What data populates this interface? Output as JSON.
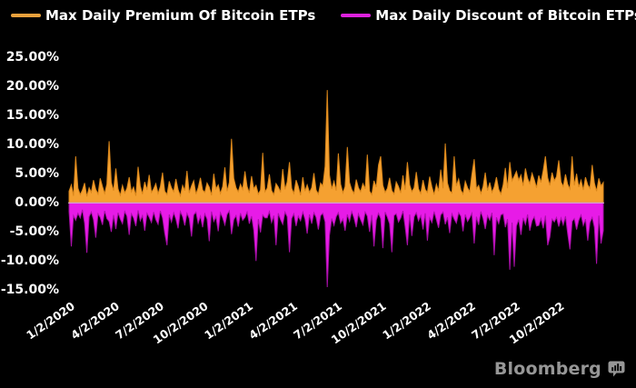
{
  "legend": [
    {
      "label": "Max Daily Premium Of Bitcoin ETPs",
      "color": "#E8A13C"
    },
    {
      "label": "Max Daily Discount of Bitcoin ETPs",
      "color": "#DE21DE"
    }
  ],
  "branding": {
    "logo_text": "Bloomberg",
    "logo_color": "#969696",
    "chart_icon": "bar-chart-bubble-icon"
  },
  "chart_data": {
    "type": "area",
    "title": "",
    "xlabel": "",
    "ylabel": "",
    "background": "#000000",
    "zero_line_color": "#E8E8E8",
    "grid": false,
    "legend_position": "top",
    "ylim": [
      -15.6,
      26.6
    ],
    "y_ticks": [
      {
        "label": "25.00%",
        "value": 25
      },
      {
        "label": "20.00%",
        "value": 20
      },
      {
        "label": "15.00%",
        "value": 15
      },
      {
        "label": "10.00%",
        "value": 10
      },
      {
        "label": "5.00%",
        "value": 5
      },
      {
        "label": "0.00%",
        "value": 0
      },
      {
        "label": "-5.00%",
        "value": -5
      },
      {
        "label": "-10.00%",
        "value": -10
      },
      {
        "label": "-15.00%",
        "value": -15
      }
    ],
    "x_ticks": [
      {
        "label": "1/2/2020",
        "index": 0
      },
      {
        "label": "4/2/2020",
        "index": 20
      },
      {
        "label": "7/2/2020",
        "index": 40
      },
      {
        "label": "10/2/2020",
        "index": 60
      },
      {
        "label": "1/2/2021",
        "index": 80
      },
      {
        "label": "4/2/2021",
        "index": 100
      },
      {
        "label": "7/2/2021",
        "index": 120
      },
      {
        "label": "10/2/2021",
        "index": 140
      },
      {
        "label": "1/2/2022",
        "index": 160
      },
      {
        "label": "4/2/2022",
        "index": 180
      },
      {
        "label": "7/2/2022",
        "index": 200
      },
      {
        "label": "10/2/2022",
        "index": 220
      }
    ],
    "series": [
      {
        "id": "premium",
        "name": "Max Daily Premium Of Bitcoin ETPs",
        "color": "#F5A131",
        "edge": "#D9861A",
        "values": [
          2.0,
          3.1,
          1.2,
          8.0,
          2.5,
          1.4,
          2.2,
          3.4,
          1.1,
          2.6,
          1.8,
          3.9,
          2.3,
          1.5,
          4.2,
          2.8,
          1.6,
          3.2,
          10.6,
          3.5,
          2.1,
          5.9,
          2.4,
          1.3,
          3.0,
          1.7,
          2.5,
          4.4,
          1.9,
          2.7,
          1.2,
          6.2,
          2.9,
          1.5,
          3.6,
          2.2,
          4.8,
          1.8,
          2.4,
          3.3,
          1.6,
          2.8,
          5.2,
          2.0,
          1.4,
          3.7,
          2.6,
          1.9,
          4.1,
          2.3,
          1.2,
          3.0,
          2.1,
          5.5,
          1.7,
          2.9,
          3.8,
          1.5,
          2.6,
          4.3,
          2.2,
          1.8,
          3.4,
          2.7,
          1.3,
          5.0,
          2.4,
          3.1,
          1.6,
          2.8,
          6.1,
          2.0,
          3.5,
          11.0,
          4.2,
          2.6,
          1.9,
          3.2,
          2.3,
          5.4,
          2.8,
          1.7,
          4.6,
          2.4,
          3.0,
          1.5,
          2.2,
          8.6,
          1.9,
          2.5,
          4.9,
          2.1,
          1.4,
          3.3,
          2.7,
          1.8,
          5.8,
          2.3,
          3.6,
          7.0,
          2.5,
          1.6,
          3.9,
          2.8,
          1.3,
          4.4,
          2.0,
          3.1,
          1.8,
          2.6,
          5.1,
          2.2,
          1.5,
          3.4,
          2.9,
          6.3,
          19.4,
          4.8,
          2.4,
          3.7,
          2.1,
          8.5,
          3.2,
          1.7,
          2.8,
          9.6,
          3.5,
          2.3,
          1.6,
          4.0,
          2.6,
          1.9,
          3.3,
          2.4,
          8.3,
          2.0,
          1.4,
          3.8,
          2.7,
          6.5,
          8.0,
          3.0,
          1.8,
          2.5,
          4.3,
          2.1,
          1.5,
          3.6,
          2.8,
          1.7,
          4.7,
          2.2,
          7.0,
          3.1,
          1.9,
          2.6,
          5.3,
          2.4,
          1.6,
          3.9,
          2.3,
          1.8,
          4.5,
          2.7,
          1.4,
          3.2,
          2.0,
          5.7,
          2.5,
          10.2,
          3.4,
          2.1,
          1.7,
          8.0,
          2.9,
          4.1,
          2.2,
          1.5,
          3.7,
          2.6,
          1.9,
          4.9,
          7.5,
          2.4,
          3.0,
          1.6,
          2.8,
          5.2,
          2.1,
          3.5,
          1.8,
          2.7,
          4.4,
          2.3,
          1.5,
          3.1,
          6.0,
          2.5,
          7.0,
          3.8,
          4.6,
          5.4,
          3.9,
          4.8,
          2.9,
          5.9,
          4.2,
          3.3,
          5.1,
          4.0,
          2.6,
          4.7,
          3.5,
          5.6,
          8.0,
          4.3,
          3.0,
          5.2,
          3.8,
          4.5,
          7.3,
          3.6,
          2.8,
          4.9,
          3.2,
          2.4,
          8.0,
          3.0,
          5.0,
          2.7,
          3.9,
          2.2,
          4.4,
          3.1,
          2.5,
          6.5,
          3.4,
          2.0,
          4.2,
          2.9,
          3.5
        ]
      },
      {
        "id": "discount",
        "name": "Max Daily Discount of Bitcoin ETPs",
        "color": "#E71BE7",
        "edge": "#A80FA8",
        "values": [
          -1.5,
          -7.5,
          -2.2,
          -3.0,
          -1.8,
          -2.6,
          -1.2,
          -3.5,
          -8.6,
          -2.4,
          -1.6,
          -2.9,
          -6.0,
          -1.9,
          -2.5,
          -3.8,
          -1.4,
          -2.7,
          -3.2,
          -5.0,
          -2.1,
          -4.5,
          -1.7,
          -2.8,
          -3.6,
          -1.5,
          -2.3,
          -5.5,
          -1.9,
          -2.6,
          -4.0,
          -1.3,
          -3.1,
          -2.2,
          -4.8,
          -1.8,
          -2.5,
          -3.4,
          -1.6,
          -2.9,
          -3.7,
          -1.4,
          -2.6,
          -5.2,
          -7.3,
          -2.0,
          -3.3,
          -1.7,
          -2.8,
          -4.4,
          -1.5,
          -2.4,
          -3.9,
          -1.8,
          -2.7,
          -5.8,
          -2.1,
          -1.6,
          -3.5,
          -2.3,
          -4.2,
          -1.9,
          -2.8,
          -6.6,
          -1.5,
          -3.2,
          -2.4,
          -4.9,
          -1.7,
          -2.6,
          -3.8,
          -2.0,
          -1.4,
          -5.4,
          -2.9,
          -2.2,
          -4.1,
          -1.8,
          -3.0,
          -2.5,
          -1.6,
          -3.6,
          -2.3,
          -4.7,
          -10.0,
          -2.8,
          -5.1,
          -2.1,
          -2.6,
          -2.6,
          -1.5,
          -3.4,
          -2.2,
          -7.3,
          -1.8,
          -2.9,
          -3.7,
          -1.6,
          -2.4,
          -8.5,
          -2.7,
          -1.9,
          -4.0,
          -2.3,
          -3.1,
          -1.6,
          -2.8,
          -5.3,
          -2.0,
          -3.6,
          -1.7,
          -2.5,
          -4.6,
          -2.2,
          -1.8,
          -3.3,
          -14.5,
          -5.6,
          -2.7,
          -3.9,
          -2.4,
          -1.7,
          -3.5,
          -2.8,
          -4.8,
          -2.0,
          -3.2,
          -1.5,
          -2.6,
          -4.2,
          -1.9,
          -2.9,
          -3.8,
          -1.6,
          -2.3,
          -5.0,
          -2.1,
          -7.5,
          -3.0,
          -1.8,
          -2.7,
          -7.8,
          -1.6,
          -2.5,
          -3.6,
          -8.5,
          -2.2,
          -1.9,
          -3.3,
          -2.6,
          -1.4,
          -4.1,
          -7.3,
          -2.0,
          -5.7,
          -2.4,
          -1.7,
          -3.1,
          -2.2,
          -4.6,
          -1.8,
          -6.5,
          -2.6,
          -3.4,
          -1.5,
          -2.9,
          -4.3,
          -2.1,
          -1.6,
          -3.7,
          -2.5,
          -5.2,
          -1.9,
          -2.8,
          -3.5,
          -1.7,
          -2.3,
          -4.9,
          -2.0,
          -3.2,
          -2.6,
          -1.8,
          -7.0,
          -2.4,
          -3.8,
          -1.5,
          -2.7,
          -4.5,
          -2.2,
          -3.0,
          -1.7,
          -9.0,
          -2.5,
          -3.6,
          -2.1,
          -1.9,
          -4.2,
          -2.8,
          -11.5,
          -3.4,
          -11.0,
          -4.0,
          -2.9,
          -5.5,
          -2.6,
          -3.7,
          -2.0,
          -4.8,
          -3.1,
          -2.4,
          -4.0,
          -3.9,
          -2.7,
          -4.4,
          -2.2,
          -7.3,
          -5.9,
          -2.8,
          -3.3,
          -2.5,
          -4.1,
          -2.6,
          -3.8,
          -2.3,
          -5.3,
          -8.0,
          -3.2,
          -2.7,
          -4.6,
          -3.0,
          -2.1,
          -3.9,
          -2.8,
          -6.5,
          -3.4,
          -2.5,
          -4.2,
          -10.5,
          -2.2,
          -7.0,
          -4.8
        ]
      }
    ]
  }
}
